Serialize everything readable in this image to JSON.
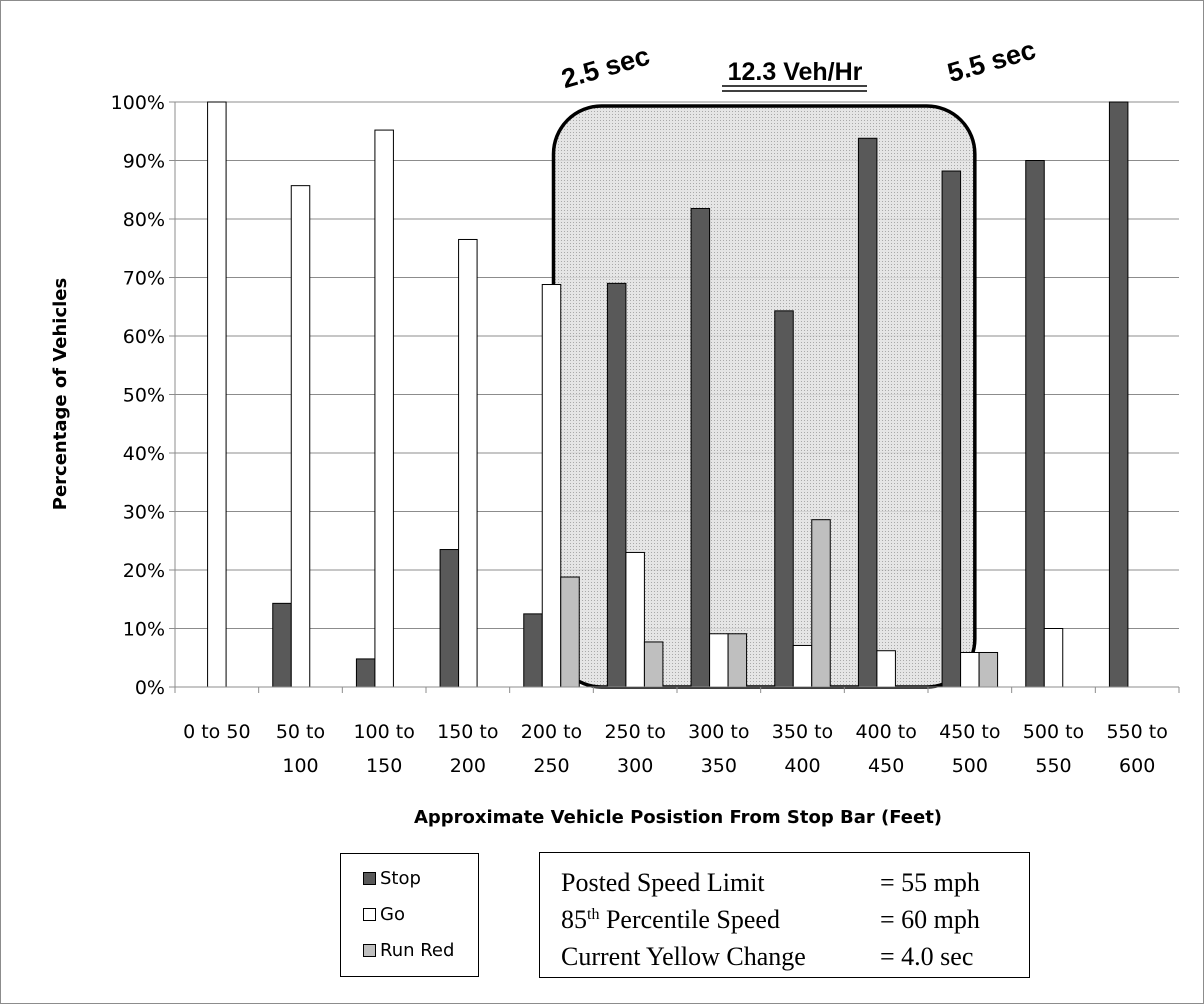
{
  "chart_data": {
    "type": "bar",
    "xlabel": "Approximate Vehicle Posistion From Stop Bar (Feet)",
    "ylabel": "Percentage  of Vehicles",
    "ylim": [
      0,
      100
    ],
    "yticks": [
      "0%",
      "10%",
      "20%",
      "30%",
      "40%",
      "50%",
      "60%",
      "70%",
      "80%",
      "90%",
      "100%"
    ],
    "grid": true,
    "categories": [
      [
        "0 to 50",
        ""
      ],
      [
        "50 to",
        "100"
      ],
      [
        "100 to",
        "150"
      ],
      [
        "150 to",
        "200"
      ],
      [
        "200 to",
        "250"
      ],
      [
        "250 to",
        "300"
      ],
      [
        "300 to",
        "350"
      ],
      [
        "350 to",
        "400"
      ],
      [
        "400 to",
        "450"
      ],
      [
        "450 to",
        "500"
      ],
      [
        "500 to",
        "550"
      ],
      [
        "550 to",
        "600"
      ]
    ],
    "series": [
      {
        "name": "Stop",
        "color": "#595959",
        "values": [
          0,
          14.3,
          4.8,
          23.5,
          12.5,
          69,
          81.8,
          64.3,
          93.8,
          88.2,
          90,
          100
        ]
      },
      {
        "name": "Go",
        "color": "#ffffff",
        "values": [
          100,
          85.7,
          95.2,
          76.5,
          68.8,
          23,
          9.1,
          7.1,
          6.2,
          5.9,
          10,
          0
        ]
      },
      {
        "name": "Run Red",
        "color": "#bfbfbf",
        "values": [
          0,
          0,
          0,
          0,
          18.8,
          7.7,
          9.1,
          28.6,
          0,
          5.9,
          0,
          0
        ]
      }
    ],
    "annotations": {
      "left_time": "2.5 sec",
      "center_rate": "12.3 Veh/Hr",
      "right_time": "5.5 sec"
    },
    "highlight_zone": {
      "from_category": "200 to 250",
      "to_category": "450 to 500"
    }
  },
  "info_box": [
    {
      "label_pre": "Posted Speed Limit",
      "label_sup": "",
      "label_post": "",
      "value": "= 55 mph"
    },
    {
      "label_pre": "85",
      "label_sup": "th",
      "label_post": " Percentile Speed",
      "value": "= 60 mph"
    },
    {
      "label_pre": "Current Yellow Change",
      "label_sup": "",
      "label_post": "",
      "value": "= 4.0 sec"
    }
  ]
}
